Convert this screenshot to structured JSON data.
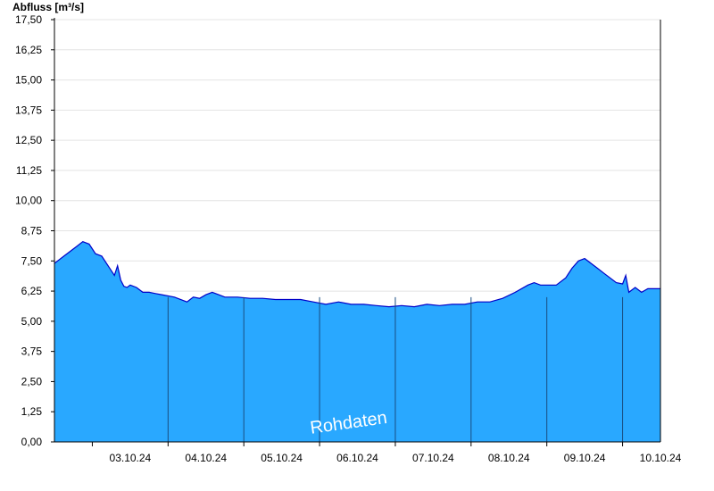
{
  "chart_data": {
    "type": "area",
    "ylabel": "Abfluss [m³/s]",
    "ylim": [
      0,
      17.5
    ],
    "yticks": [
      "0,00",
      "1,25",
      "2,50",
      "3,75",
      "5,00",
      "6,25",
      "7,50",
      "8,75",
      "10,00",
      "11,25",
      "12,50",
      "13,75",
      "15,00",
      "16,25",
      "17,50"
    ],
    "x_date_labels": [
      "03.10.24",
      "04.10.24",
      "05.10.24",
      "06.10.24",
      "07.10.24",
      "08.10.24",
      "09.10.24",
      "10.10.24"
    ],
    "x_start": "2024-10-02 12:00",
    "x_end": "2024-10-10 12:00",
    "grid": true,
    "watermark": "Rohdaten",
    "fill_color": "#29a8ff",
    "line_color": "#0000c8",
    "series": [
      {
        "x": [
          "2024-10-02 12:00",
          "2024-10-02 13:00",
          "2024-10-02 15:00",
          "2024-10-02 17:00",
          "2024-10-02 19:00",
          "2024-10-02 21:00",
          "2024-10-02 23:00",
          "2024-10-03 01:00",
          "2024-10-03 03:00",
          "2024-10-03 05:00",
          "2024-10-03 07:00",
          "2024-10-03 08:00",
          "2024-10-03 09:00",
          "2024-10-03 10:00",
          "2024-10-03 11:00",
          "2024-10-03 12:00",
          "2024-10-03 14:00",
          "2024-10-03 16:00",
          "2024-10-03 18:00",
          "2024-10-03 20:00",
          "2024-10-03 22:00",
          "2024-10-04 02:00",
          "2024-10-04 06:00",
          "2024-10-04 08:00",
          "2024-10-04 10:00",
          "2024-10-04 12:00",
          "2024-10-04 14:00",
          "2024-10-04 16:00",
          "2024-10-04 18:00",
          "2024-10-04 20:00",
          "2024-10-04 22:00",
          "2024-10-05 02:00",
          "2024-10-05 06:00",
          "2024-10-05 10:00",
          "2024-10-05 14:00",
          "2024-10-05 18:00",
          "2024-10-05 22:00",
          "2024-10-06 02:00",
          "2024-10-06 06:00",
          "2024-10-06 10:00",
          "2024-10-06 14:00",
          "2024-10-06 18:00",
          "2024-10-06 22:00",
          "2024-10-07 02:00",
          "2024-10-07 06:00",
          "2024-10-07 10:00",
          "2024-10-07 14:00",
          "2024-10-07 18:00",
          "2024-10-07 22:00",
          "2024-10-08 02:00",
          "2024-10-08 06:00",
          "2024-10-08 10:00",
          "2024-10-08 14:00",
          "2024-10-08 18:00",
          "2024-10-08 20:00",
          "2024-10-08 22:00",
          "2024-10-09 00:00",
          "2024-10-09 03:00",
          "2024-10-09 06:00",
          "2024-10-09 08:00",
          "2024-10-09 10:00",
          "2024-10-09 12:00",
          "2024-10-09 14:00",
          "2024-10-09 16:00",
          "2024-10-09 18:00",
          "2024-10-09 20:00",
          "2024-10-09 22:00",
          "2024-10-10 00:00",
          "2024-10-10 01:00",
          "2024-10-10 02:00",
          "2024-10-10 04:00",
          "2024-10-10 06:00",
          "2024-10-10 08:00",
          "2024-10-10 10:00",
          "2024-10-10 12:00"
        ],
        "y": [
          7.4,
          7.5,
          7.7,
          7.9,
          8.1,
          8.3,
          8.2,
          7.8,
          7.7,
          7.3,
          6.9,
          7.3,
          6.7,
          6.45,
          6.4,
          6.5,
          6.4,
          6.2,
          6.2,
          6.15,
          6.1,
          6.0,
          5.8,
          6.0,
          5.95,
          6.1,
          6.2,
          6.1,
          6.0,
          6.0,
          6.0,
          5.95,
          5.95,
          5.9,
          5.9,
          5.9,
          5.8,
          5.7,
          5.8,
          5.7,
          5.7,
          5.65,
          5.6,
          5.65,
          5.6,
          5.7,
          5.65,
          5.7,
          5.7,
          5.8,
          5.8,
          5.95,
          6.2,
          6.5,
          6.6,
          6.5,
          6.5,
          6.5,
          6.8,
          7.2,
          7.5,
          7.6,
          7.4,
          7.2,
          7.0,
          6.8,
          6.6,
          6.55,
          6.9,
          6.2,
          6.4,
          6.2,
          6.35,
          6.35,
          6.35
        ]
      }
    ]
  }
}
